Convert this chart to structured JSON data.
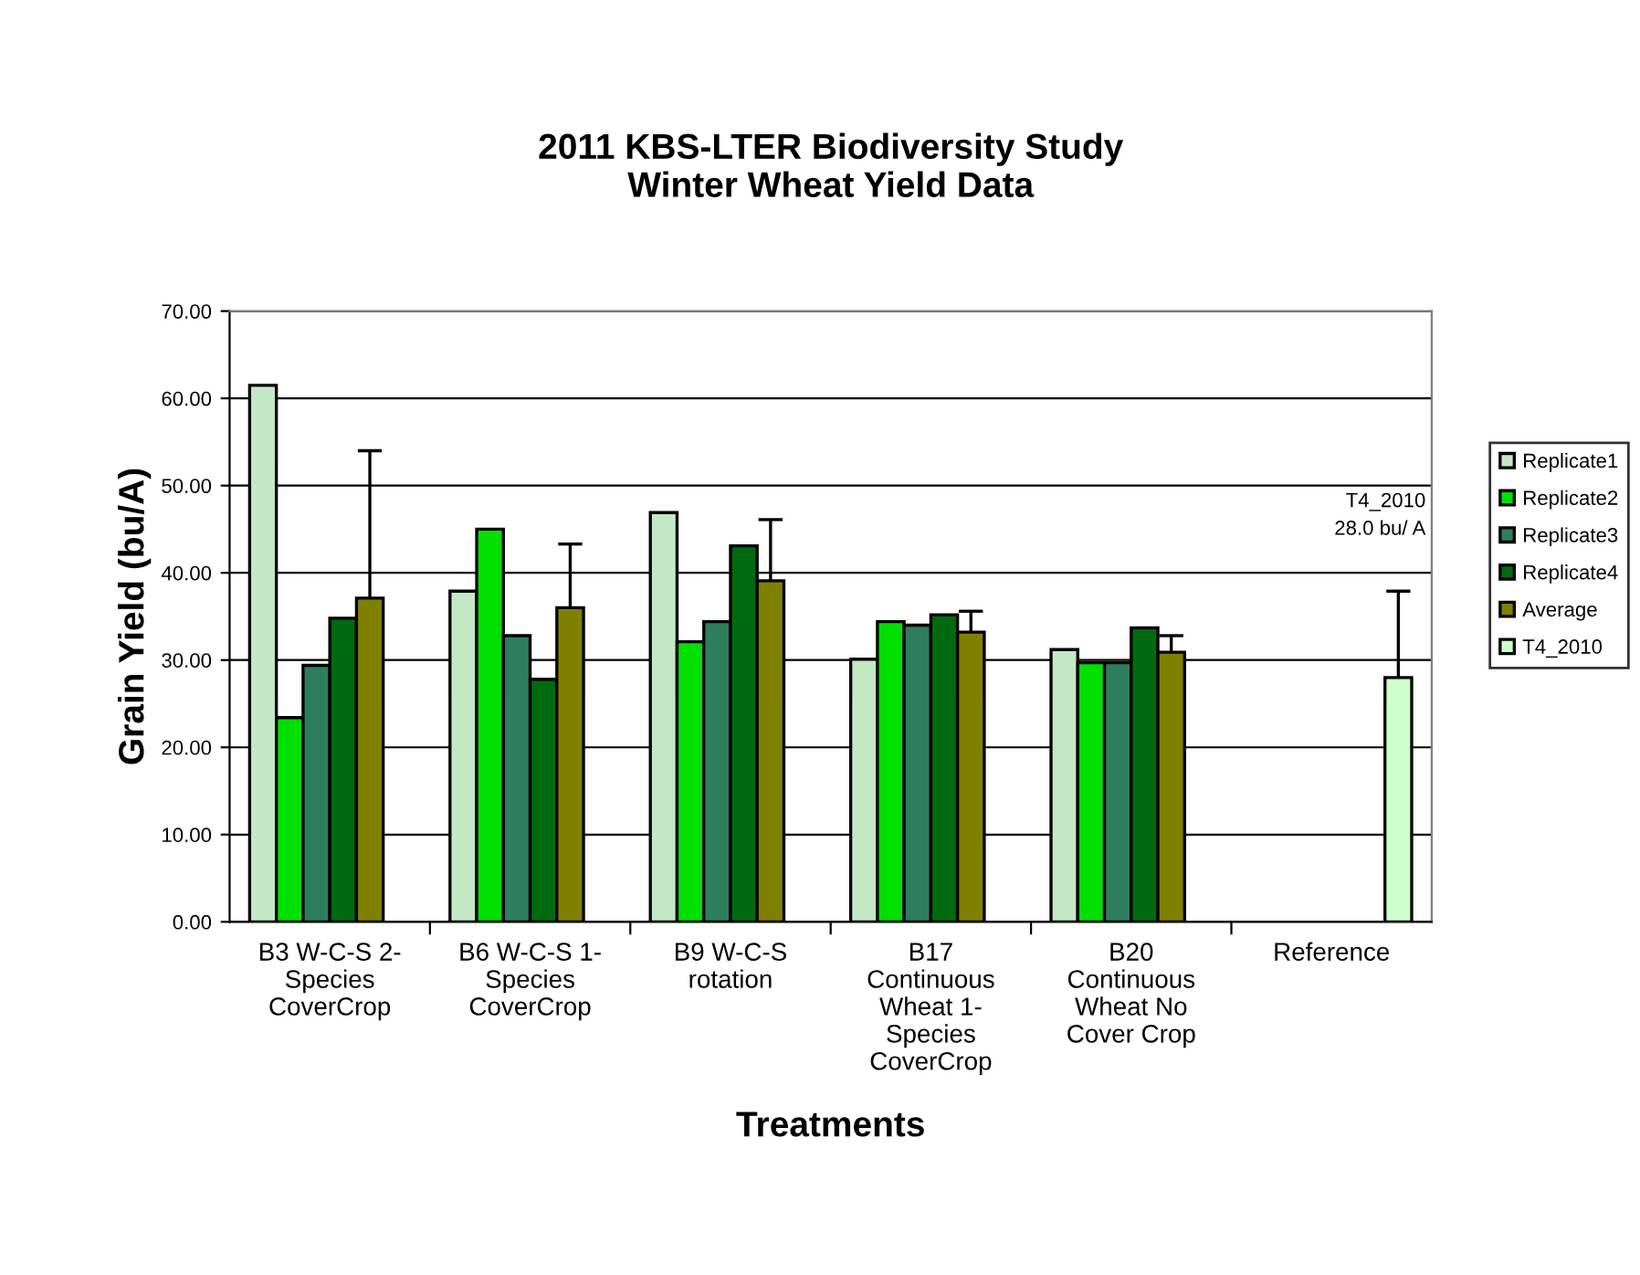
{
  "chart_data": {
    "type": "bar",
    "title": "2011 KBS-LTER Biodiversity Study\nWinter Wheat Yield Data",
    "xlabel": "Treatments",
    "ylabel": "Grain Yield (bu/A)",
    "categories": [
      "B3 W-C-S 2-\nSpecies\nCoverCrop",
      "B6 W-C-S 1-\nSpecies\nCoverCrop",
      "B9 W-C-S\nrotation",
      "B17\nContinuous\nWheat 1-\nSpecies\nCoverCrop",
      "B20\nContinuous\nWheat No\nCover Crop",
      "Reference"
    ],
    "series": [
      {
        "name": "Replicate1",
        "color": "#c4e8c4",
        "values": [
          61.5,
          37.9,
          46.9,
          30.1,
          31.2,
          null
        ]
      },
      {
        "name": "Replicate2",
        "color": "#00e000",
        "values": [
          23.4,
          45.0,
          32.1,
          34.4,
          29.7,
          null
        ]
      },
      {
        "name": "Replicate3",
        "color": "#2e7d5e",
        "values": [
          29.4,
          32.8,
          34.4,
          34.0,
          29.7,
          null
        ]
      },
      {
        "name": "Replicate4",
        "color": "#006a10",
        "values": [
          34.8,
          27.8,
          43.1,
          35.2,
          33.7,
          null
        ]
      },
      {
        "name": "Average",
        "color": "#808000",
        "values": [
          37.1,
          36.0,
          39.1,
          33.2,
          30.9,
          null
        ],
        "errors": [
          [
            37.1,
            54.0
          ],
          [
            36.0,
            43.3
          ],
          [
            39.1,
            46.1
          ],
          [
            33.2,
            35.6
          ],
          [
            30.9,
            32.8
          ],
          null
        ]
      },
      {
        "name": "T4_2010",
        "color": "#ccffcc",
        "values": [
          null,
          null,
          null,
          null,
          null,
          28.0
        ],
        "errors": [
          null,
          null,
          null,
          null,
          null,
          [
            28.0,
            37.9
          ]
        ]
      }
    ],
    "annotations": [
      "T4_2010\n28.0 bu/ A"
    ],
    "ylim": [
      0,
      70
    ],
    "yticks": [
      {
        "value": 0,
        "label": "0.00"
      },
      {
        "value": 10,
        "label": "10.00"
      },
      {
        "value": 20,
        "label": "20.00"
      },
      {
        "value": 30,
        "label": "30.00"
      },
      {
        "value": 40,
        "label": "40.00"
      },
      {
        "value": 50,
        "label": "50.00"
      },
      {
        "value": 60,
        "label": "60.00"
      },
      {
        "value": 70,
        "label": "70.00"
      }
    ],
    "grid": "y",
    "legend": "right"
  }
}
